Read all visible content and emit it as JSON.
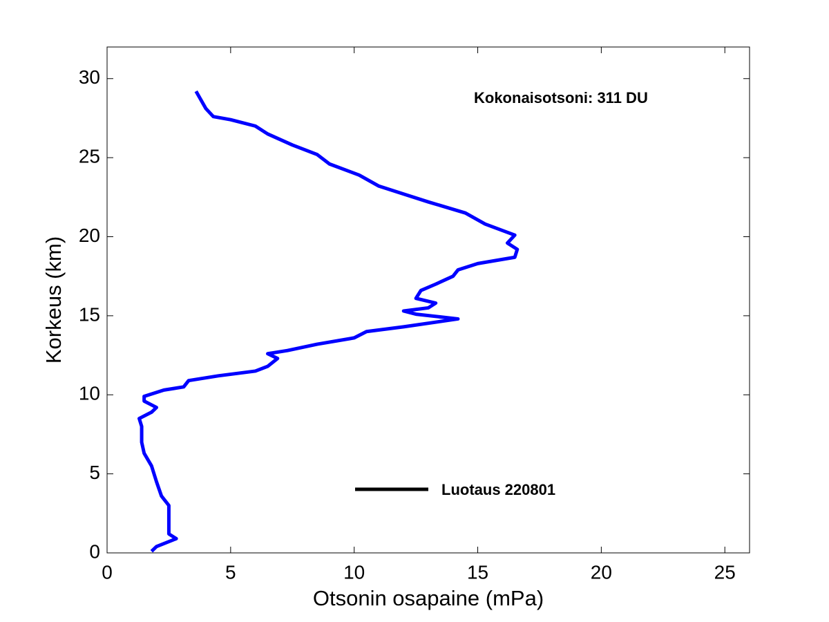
{
  "chart_data": {
    "type": "line",
    "xlabel": "Otsonin osapaine (mPa)",
    "ylabel": "Korkeus (km)",
    "annotation": "Kokonaisotsoni: 311 DU",
    "xlim": [
      0,
      26
    ],
    "xticks": [
      0,
      5,
      10,
      15,
      20,
      25
    ],
    "ylim": [
      0,
      32
    ],
    "yticks": [
      0,
      5,
      10,
      15,
      20,
      25,
      30
    ],
    "legend_line_color": "#000000",
    "series": [
      {
        "name": "Luotaus 220801",
        "color": "#0000ff",
        "x": [
          1.8,
          2.0,
          2.8,
          2.5,
          2.5,
          2.5,
          2.2,
          2.0,
          1.8,
          1.5,
          1.4,
          1.4,
          1.3,
          1.8,
          2.0,
          1.5,
          1.5,
          2.3,
          3.1,
          3.3,
          4.5,
          6.0,
          6.5,
          6.9,
          6.5,
          7.3,
          8.5,
          10.0,
          10.5,
          12.0,
          14.2,
          12.5,
          12.0,
          13.0,
          13.3,
          12.5,
          12.7,
          13.3,
          14.0,
          14.2,
          15.0,
          16.5,
          16.6,
          16.2,
          16.5,
          15.3,
          14.5,
          13.0,
          12.0,
          11.0,
          10.2,
          9.0,
          8.5,
          7.5,
          6.5,
          6.0,
          5.0,
          4.3,
          4.0,
          3.6
        ],
        "values": [
          0.1,
          0.4,
          0.9,
          1.2,
          2.0,
          3.0,
          3.6,
          4.5,
          5.5,
          6.3,
          7.0,
          8.0,
          8.5,
          8.9,
          9.2,
          9.6,
          9.9,
          10.3,
          10.5,
          10.9,
          11.2,
          11.5,
          11.8,
          12.3,
          12.6,
          12.8,
          13.2,
          13.6,
          14.0,
          14.3,
          14.8,
          15.1,
          15.3,
          15.5,
          15.8,
          16.1,
          16.6,
          17.0,
          17.5,
          17.9,
          18.3,
          18.7,
          19.2,
          19.6,
          20.1,
          20.8,
          21.5,
          22.2,
          22.7,
          23.2,
          23.9,
          24.6,
          25.2,
          25.8,
          26.5,
          27.0,
          27.4,
          27.6,
          28.1,
          29.2
        ]
      }
    ]
  }
}
